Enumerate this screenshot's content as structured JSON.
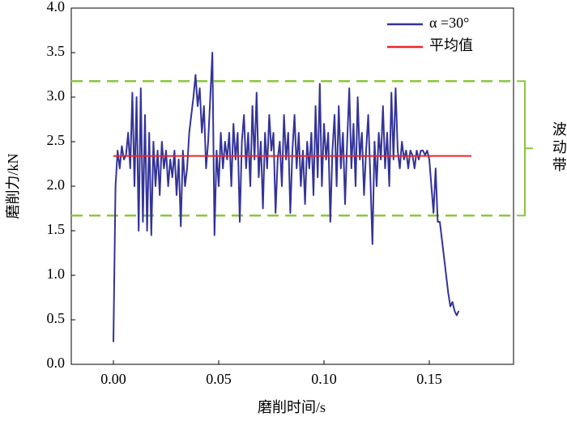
{
  "chart_data": {
    "type": "line",
    "xlabel": "磨削时间/s",
    "ylabel": "磨削力/kN",
    "xlim": [
      -0.02,
      0.19
    ],
    "ylim": [
      0,
      4
    ],
    "xticks": [
      {
        "value": 0,
        "label": "0.00"
      },
      {
        "value": 0.05,
        "label": "0.05"
      },
      {
        "value": 0.1,
        "label": "0.10"
      },
      {
        "value": 0.15,
        "label": "0.15"
      }
    ],
    "yticks": [
      {
        "value": 0,
        "label": "0.0"
      },
      {
        "value": 0.5,
        "label": "0.5"
      },
      {
        "value": 1,
        "label": "1.0"
      },
      {
        "value": 1.5,
        "label": "1.5"
      },
      {
        "value": 2,
        "label": "2.0"
      },
      {
        "value": 2.5,
        "label": "2.5"
      },
      {
        "value": 3,
        "label": "3.0"
      },
      {
        "value": 3.5,
        "label": "3.5"
      },
      {
        "value": 4,
        "label": "4.0"
      }
    ],
    "legend": "upper right",
    "series": [
      {
        "name": "α =30°",
        "color": "#333399",
        "x": [
          0,
          0.001,
          0.002,
          0.003,
          0.004,
          0.005,
          0.006,
          0.007,
          0.008,
          0.009,
          0.01,
          0.011,
          0.012,
          0.013,
          0.014,
          0.015,
          0.016,
          0.017,
          0.018,
          0.019,
          0.02,
          0.021,
          0.022,
          0.023,
          0.024,
          0.025,
          0.026,
          0.027,
          0.028,
          0.029,
          0.03,
          0.031,
          0.032,
          0.033,
          0.034,
          0.035,
          0.036,
          0.037,
          0.038,
          0.039,
          0.04,
          0.041,
          0.042,
          0.043,
          0.044,
          0.045,
          0.046,
          0.047,
          0.048,
          0.049,
          0.05,
          0.051,
          0.052,
          0.053,
          0.054,
          0.055,
          0.056,
          0.057,
          0.058,
          0.059,
          0.06,
          0.061,
          0.062,
          0.063,
          0.064,
          0.065,
          0.066,
          0.067,
          0.068,
          0.069,
          0.07,
          0.071,
          0.072,
          0.073,
          0.074,
          0.075,
          0.076,
          0.077,
          0.078,
          0.079,
          0.08,
          0.081,
          0.082,
          0.083,
          0.084,
          0.085,
          0.086,
          0.087,
          0.088,
          0.089,
          0.09,
          0.091,
          0.092,
          0.093,
          0.094,
          0.095,
          0.096,
          0.097,
          0.098,
          0.099,
          0.1,
          0.101,
          0.102,
          0.103,
          0.104,
          0.105,
          0.106,
          0.107,
          0.108,
          0.109,
          0.11,
          0.111,
          0.112,
          0.113,
          0.114,
          0.115,
          0.116,
          0.117,
          0.118,
          0.119,
          0.12,
          0.121,
          0.122,
          0.123,
          0.124,
          0.125,
          0.126,
          0.127,
          0.128,
          0.129,
          0.13,
          0.131,
          0.132,
          0.133,
          0.134,
          0.135,
          0.136,
          0.137,
          0.138,
          0.139,
          0.14,
          0.141,
          0.142,
          0.143,
          0.144,
          0.145,
          0.146,
          0.147,
          0.148,
          0.149,
          0.15,
          0.151,
          0.152,
          0.153,
          0.154,
          0.155,
          0.156,
          0.157,
          0.158,
          0.159,
          0.16,
          0.161,
          0.162,
          0.163,
          0.164
        ],
        "values": [
          0.25,
          2.0,
          2.4,
          2.2,
          2.45,
          2.3,
          2.35,
          2.6,
          2.2,
          3.05,
          2.0,
          3.0,
          1.5,
          3.1,
          1.6,
          2.8,
          1.5,
          2.6,
          1.45,
          2.5,
          2.0,
          2.4,
          1.9,
          2.5,
          2.2,
          2.4,
          2.0,
          2.3,
          2.1,
          2.4,
          1.9,
          2.3,
          1.55,
          2.4,
          2.0,
          2.2,
          2.6,
          2.8,
          3.0,
          3.25,
          2.9,
          3.1,
          2.6,
          2.9,
          2.2,
          2.5,
          3.0,
          3.5,
          1.45,
          2.4,
          2.0,
          2.6,
          2.2,
          2.5,
          2.3,
          2.6,
          2.0,
          2.7,
          2.3,
          2.6,
          1.6,
          2.5,
          2.8,
          2.2,
          2.6,
          2.0,
          2.9,
          2.3,
          3.05,
          2.1,
          2.5,
          1.75,
          2.6,
          2.2,
          2.8,
          2.4,
          2.6,
          1.7,
          2.3,
          2.5,
          2.0,
          2.8,
          2.3,
          2.6,
          1.7,
          2.4,
          2.8,
          2.2,
          2.6,
          2.0,
          2.4,
          1.8,
          2.5,
          2.2,
          2.6,
          1.9,
          2.9,
          2.1,
          3.15,
          2.0,
          2.7,
          2.3,
          2.6,
          1.6,
          2.4,
          2.8,
          2.0,
          2.9,
          2.2,
          2.6,
          1.8,
          2.5,
          3.1,
          2.2,
          2.7,
          2.0,
          3.0,
          2.3,
          2.6,
          1.9,
          2.4,
          2.8,
          2.1,
          1.35,
          2.5,
          2.0,
          2.6,
          2.3,
          2.9,
          2.2,
          2.6,
          2.0,
          3.05,
          2.3,
          3.1,
          2.4,
          2.2,
          2.5,
          2.3,
          2.4,
          2.2,
          2.4,
          2.35,
          2.2,
          2.4,
          2.3,
          2.4,
          2.4,
          2.35,
          2.4,
          2.3,
          2.0,
          1.7,
          2.2,
          1.6,
          1.6,
          1.4,
          1.2,
          1.0,
          0.8,
          0.65,
          0.7,
          0.6,
          0.55,
          0.6
        ]
      },
      {
        "name": "平均值",
        "color": "#e8272a",
        "x": [
          0,
          0.17
        ],
        "values": [
          2.34,
          2.34
        ]
      }
    ],
    "band": {
      "label": "波动带",
      "color": "#8cc63f",
      "upper": 3.18,
      "lower": 1.67
    }
  }
}
